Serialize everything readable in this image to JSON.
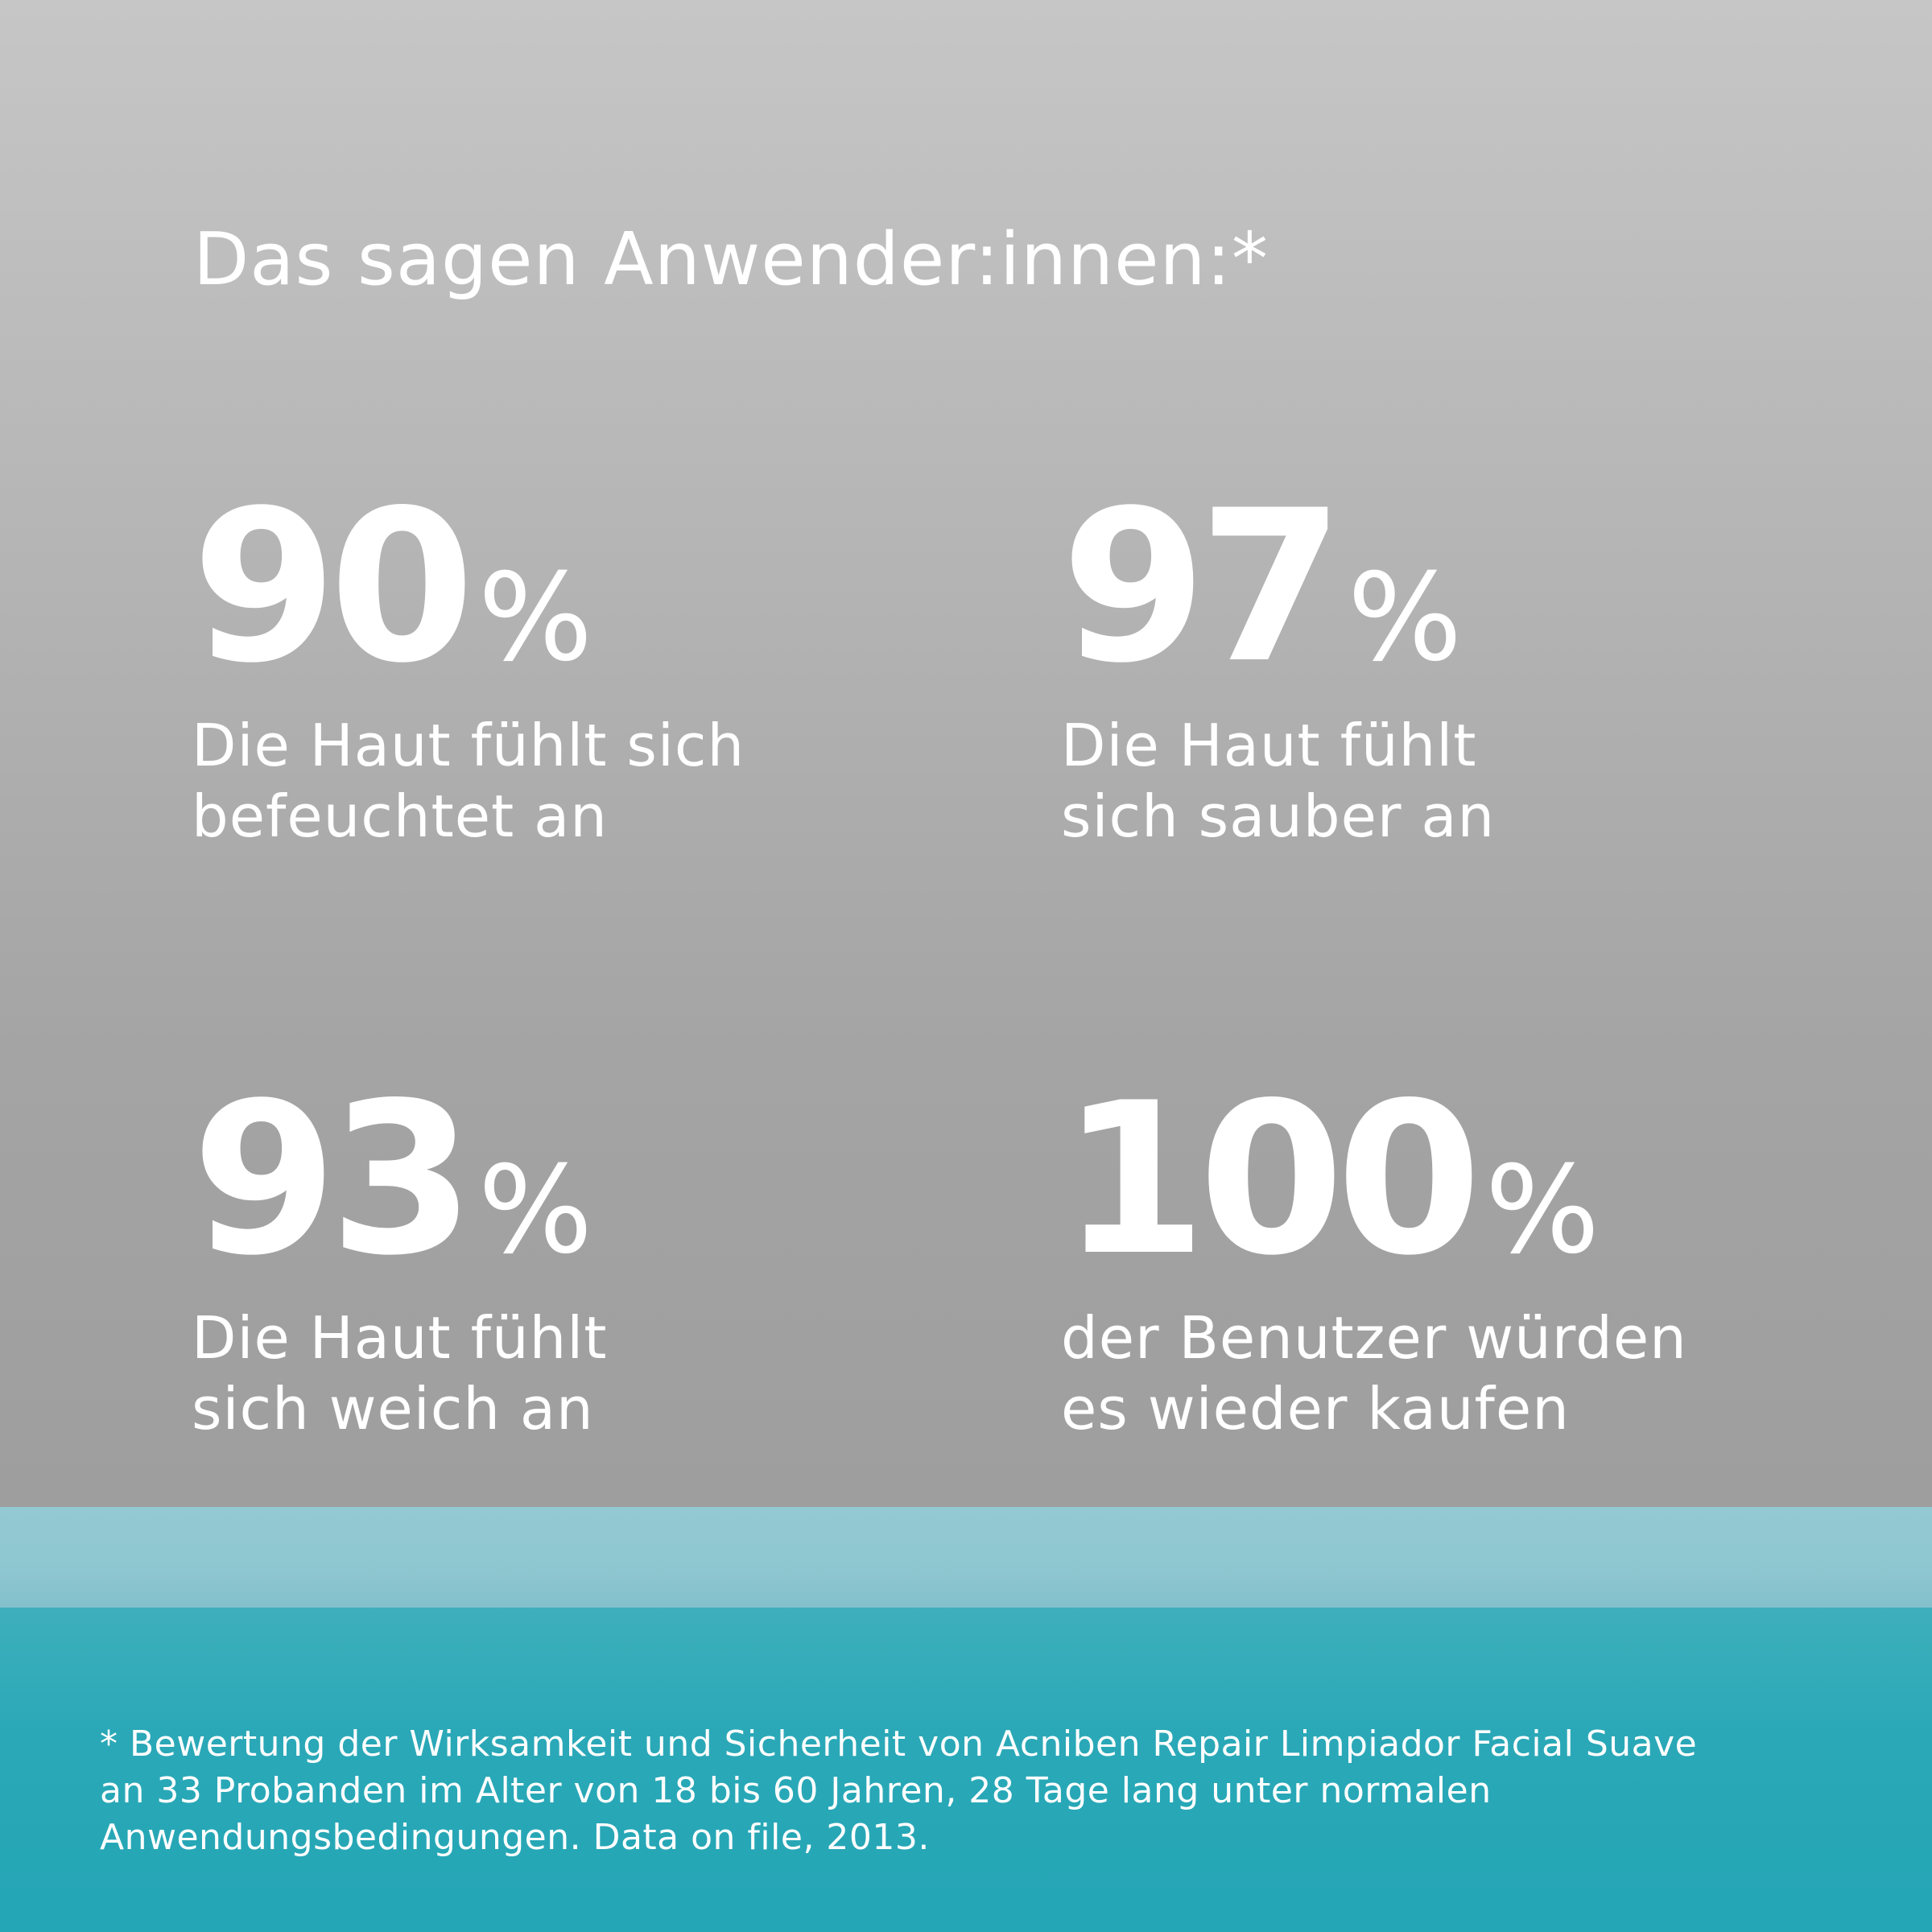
{
  "headline": "Das sagen Anwender:innen:*",
  "stats": [
    {
      "value": "90",
      "unit": "%",
      "label_line1": "Die Haut fühlt sich",
      "label_line2": "befeuchtet an"
    },
    {
      "value": "97",
      "unit": "%",
      "label_line1": "Die Haut fühlt",
      "label_line2": "sich sauber an"
    },
    {
      "value": "93",
      "unit": "%",
      "label_line1": "Die Haut fühlt",
      "label_line2": "sich weich an"
    },
    {
      "value": "100",
      "unit": "%",
      "label_line1": "der Benutzer würden",
      "label_line2": "es wieder kaufen"
    }
  ],
  "footnote": {
    "line1": "* Bewertung der Wirksamkeit und Sicherheit von Acniben Repair Limpiador Facial Suave",
    "line2": "an 33 Probanden im Alter von 18 bis 60 Jahren, 28 Tage lang unter normalen",
    "line3": "Anwendungsbedingungen. Data on file, 2013."
  },
  "colors": {
    "top_panel": "#b3b3b3",
    "light_band": "#8fc7d1",
    "bottom_band": "#24a6b6",
    "text": "#ffffff"
  }
}
